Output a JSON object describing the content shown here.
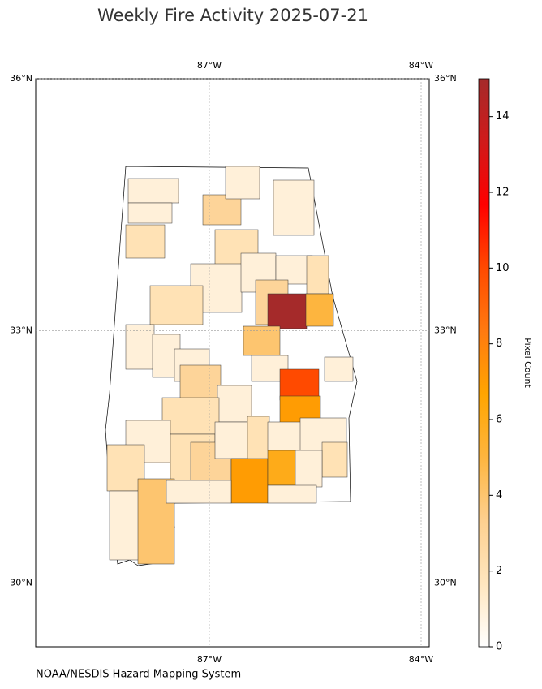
{
  "chart_data": {
    "type": "choropleth",
    "title": "Weekly Fire Activity 2025-07-21",
    "colorbar_label": "Pixel Count",
    "source": "NOAA/NESDIS Hazard Mapping System",
    "xlim": [
      -89.46,
      -83.885
    ],
    "ylim": [
      29.24,
      36
    ],
    "xticks": [
      {
        "value": -87,
        "label": "87°W"
      },
      {
        "value": -84,
        "label": "84°W"
      }
    ],
    "yticks": [
      {
        "value": 36,
        "label": "36°N"
      },
      {
        "value": 33,
        "label": "33°N"
      },
      {
        "value": 30,
        "label": "30°N"
      }
    ],
    "grid": true,
    "clim": [
      0,
      15
    ],
    "cticks": [
      0,
      2,
      4,
      6,
      8,
      10,
      12,
      14
    ],
    "colormap": [
      "#ffffff",
      "#ffe6bf",
      "#fdd08f",
      "#fdb53f",
      "#ffa500",
      "#ff7a10",
      "#ff4a00",
      "#ff0000",
      "#d01a1a",
      "#a52a2a"
    ],
    "regions": {
      "values": [
        1,
        1,
        2,
        3,
        1,
        1,
        2,
        1,
        1,
        1,
        2,
        2,
        3,
        15,
        5,
        4,
        1,
        1,
        1,
        3,
        1,
        10,
        7,
        1,
        1,
        2,
        1,
        2,
        3,
        1,
        2,
        1,
        1,
        2,
        1,
        7,
        6,
        1,
        2,
        1,
        4,
        1
      ]
    }
  }
}
